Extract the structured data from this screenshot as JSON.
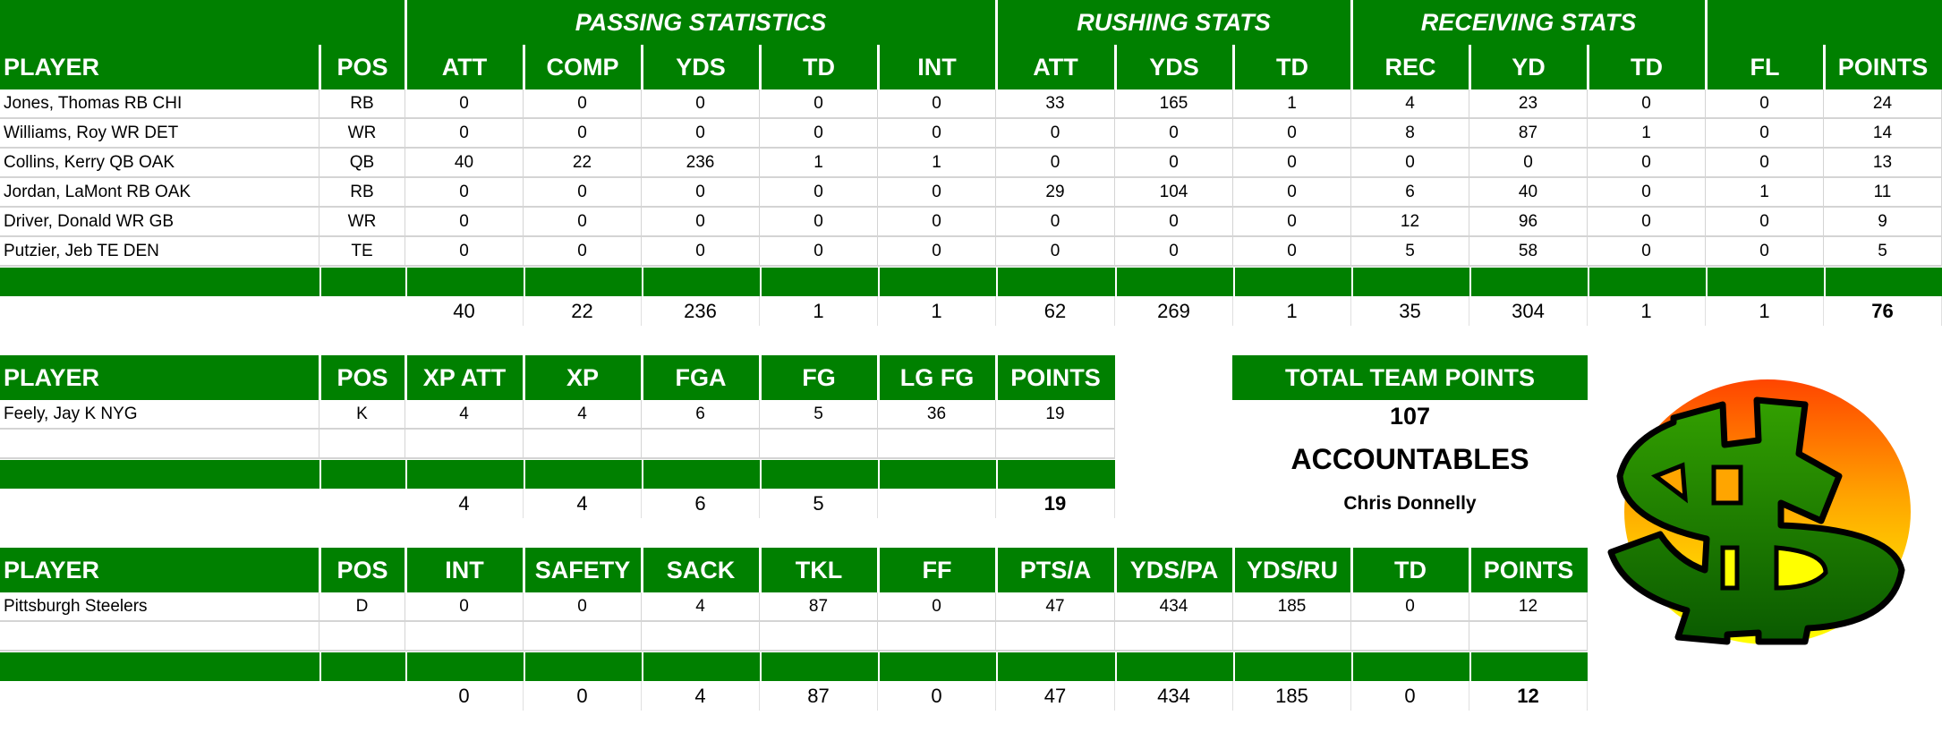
{
  "offense": {
    "group_headers": [
      "PASSING STATISTICS",
      "RUSHING STATS",
      "RECEIVING STATS"
    ],
    "columns": [
      "PLAYER",
      "POS",
      "ATT",
      "COMP",
      "YDS",
      "TD",
      "INT",
      "ATT",
      "YDS",
      "TD",
      "REC",
      "YD",
      "TD",
      "FL",
      "POINTS"
    ],
    "rows": [
      [
        "Jones, Thomas RB CHI",
        "RB",
        "0",
        "0",
        "0",
        "0",
        "0",
        "33",
        "165",
        "1",
        "4",
        "23",
        "0",
        "0",
        "24"
      ],
      [
        "Williams, Roy WR DET",
        "WR",
        "0",
        "0",
        "0",
        "0",
        "0",
        "0",
        "0",
        "0",
        "8",
        "87",
        "1",
        "0",
        "14"
      ],
      [
        "Collins, Kerry QB OAK",
        "QB",
        "40",
        "22",
        "236",
        "1",
        "1",
        "0",
        "0",
        "0",
        "0",
        "0",
        "0",
        "0",
        "13"
      ],
      [
        "Jordan, LaMont RB OAK",
        "RB",
        "0",
        "0",
        "0",
        "0",
        "0",
        "29",
        "104",
        "0",
        "6",
        "40",
        "0",
        "1",
        "11"
      ],
      [
        "Driver, Donald WR GB",
        "WR",
        "0",
        "0",
        "0",
        "0",
        "0",
        "0",
        "0",
        "0",
        "12",
        "96",
        "0",
        "0",
        "9"
      ],
      [
        "Putzier, Jeb TE DEN",
        "TE",
        "0",
        "0",
        "0",
        "0",
        "0",
        "0",
        "0",
        "0",
        "5",
        "58",
        "0",
        "0",
        "5"
      ]
    ],
    "totals": [
      "",
      "",
      "40",
      "22",
      "236",
      "1",
      "1",
      "62",
      "269",
      "1",
      "35",
      "304",
      "1",
      "1",
      "76"
    ]
  },
  "kicker": {
    "columns": [
      "PLAYER",
      "POS",
      "XP ATT",
      "XP",
      "FGA",
      "FG",
      "LG FG",
      "POINTS"
    ],
    "rows": [
      [
        "Feely, Jay K NYG",
        "K",
        "4",
        "4",
        "6",
        "5",
        "36",
        "19"
      ]
    ],
    "totals": [
      "",
      "",
      "4",
      "4",
      "6",
      "5",
      "",
      "19"
    ]
  },
  "defense": {
    "columns": [
      "PLAYER",
      "POS",
      "INT",
      "SAFETY",
      "SACK",
      "TKL",
      "FF",
      "PTS/A",
      "YDS/PA",
      "YDS/RU",
      "TD",
      "POINTS"
    ],
    "rows": [
      [
        "Pittsburgh Steelers",
        "D",
        "0",
        "0",
        "4",
        "87",
        "0",
        "47",
        "434",
        "185",
        "0",
        "12"
      ]
    ],
    "totals": [
      "",
      "",
      "0",
      "0",
      "4",
      "87",
      "0",
      "47",
      "434",
      "185",
      "0",
      "12"
    ]
  },
  "summary": {
    "total_label": "TOTAL TEAM POINTS",
    "total_value": "107",
    "team_name": "ACCOUNTABLES",
    "owner": "Chris Donnelly"
  },
  "logo": {
    "icon": "dollar-sign-logo"
  },
  "colors": {
    "header_green": "#008000",
    "grid": "#d4d4d4"
  }
}
